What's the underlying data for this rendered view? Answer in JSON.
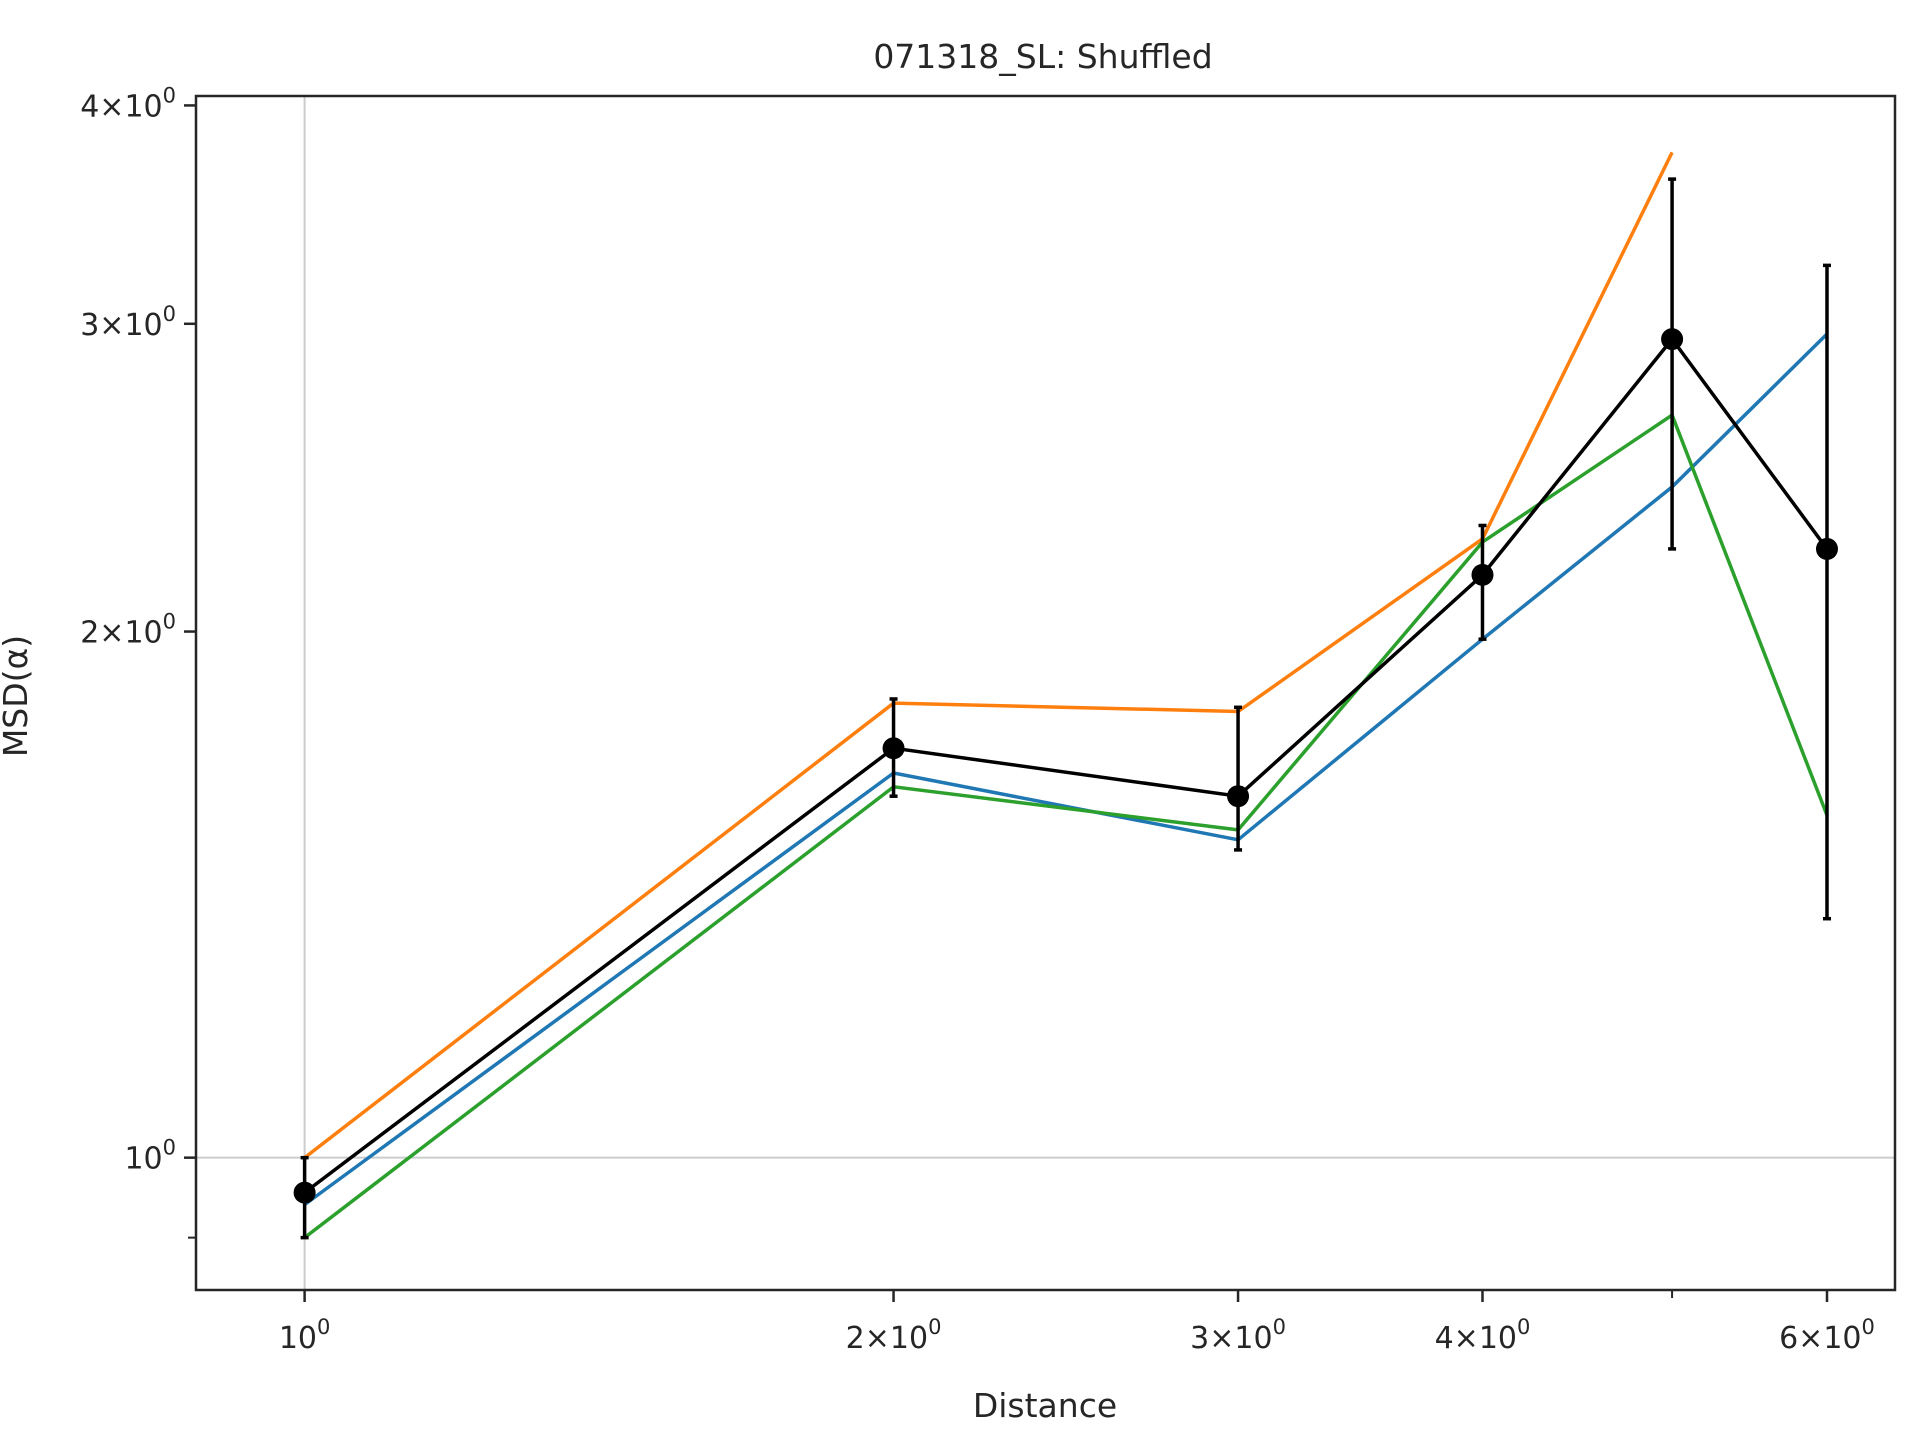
{
  "chart_data": {
    "type": "line",
    "title": "071318_SL: Shuffled",
    "xlabel": "Distance",
    "ylabel": "MSD(α)",
    "xscale": "log",
    "yscale": "log",
    "xlim": [
      0.88,
      6.5
    ],
    "ylim": [
      0.84,
      4.05
    ],
    "grid": false,
    "x": [
      1,
      2,
      3,
      4,
      5,
      6
    ],
    "x_ticks": [
      {
        "value": 1,
        "mantissa": "",
        "exp": "0"
      },
      {
        "value": 2,
        "mantissa": "2",
        "exp": "0"
      },
      {
        "value": 3,
        "mantissa": "3",
        "exp": "0"
      },
      {
        "value": 4,
        "mantissa": "4",
        "exp": "0"
      },
      {
        "value": 6,
        "mantissa": "6",
        "exp": "0"
      }
    ],
    "x_minor_ticks": [
      5
    ],
    "y_ticks": [
      {
        "value": 1,
        "mantissa": "",
        "exp": "0"
      },
      {
        "value": 2,
        "mantissa": "2",
        "exp": "0"
      },
      {
        "value": 3,
        "mantissa": "3",
        "exp": "0"
      },
      {
        "value": 4,
        "mantissa": "4",
        "exp": "0"
      }
    ],
    "y_minor_ticks": [
      0.9
    ],
    "reference_lines": {
      "x": 1,
      "y": 1,
      "color": "#cccccc"
    },
    "series": [
      {
        "color": "#1f77b4",
        "values": [
          0.94,
          1.66,
          1.52,
          1.98,
          2.42,
          2.96
        ]
      },
      {
        "color": "#ff7f0e",
        "values": [
          1.0,
          1.82,
          1.8,
          2.26,
          3.76,
          null
        ]
      },
      {
        "color": "#2ca02c",
        "values": [
          0.9,
          1.63,
          1.54,
          2.25,
          2.66,
          1.57
        ]
      }
    ],
    "mean_series": {
      "color": "#000000",
      "values": [
        0.955,
        1.715,
        1.61,
        2.155,
        2.94,
        2.23
      ],
      "error_low": [
        0.9,
        1.61,
        1.5,
        1.98,
        2.23,
        1.37
      ],
      "error_high": [
        1.0,
        1.83,
        1.81,
        2.3,
        3.63,
        3.24
      ]
    }
  }
}
